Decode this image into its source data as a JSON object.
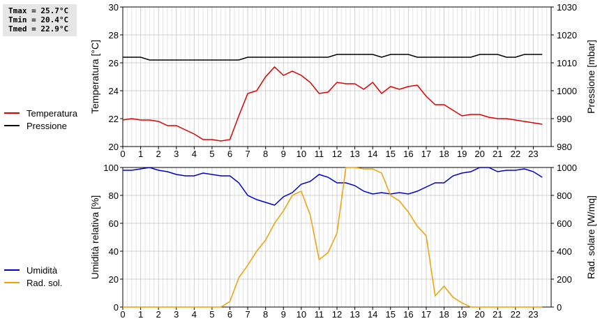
{
  "stats": {
    "tmax": "Tmax = 25.7°C",
    "tmin": "Tmin = 20.4°C",
    "tmed": "Tmed = 22.9°C"
  },
  "chart_data": [
    {
      "type": "line",
      "title": "",
      "xlabel": "",
      "ylabel": "Temperatura [°C]",
      "y2label": "Pressione [mbar]",
      "xlim": [
        0,
        24
      ],
      "ylim": [
        20,
        30
      ],
      "y2lim": [
        980,
        1030
      ],
      "grid": true,
      "legend": "left",
      "x_ticks": [
        0,
        1,
        2,
        3,
        4,
        5,
        6,
        7,
        8,
        9,
        10,
        11,
        12,
        13,
        14,
        15,
        16,
        17,
        18,
        19,
        20,
        21,
        22,
        23
      ],
      "y_ticks": [
        20,
        22,
        24,
        26,
        28,
        30
      ],
      "y2_ticks": [
        980,
        990,
        1000,
        1010,
        1020,
        1030
      ],
      "series": [
        {
          "name": "Temperatura",
          "color": "#dd0000",
          "axis": "left",
          "x": [
            0,
            0.5,
            1,
            1.5,
            2,
            2.5,
            3,
            3.5,
            4,
            4.5,
            5,
            5.5,
            6,
            6.5,
            7,
            7.5,
            8,
            8.5,
            9,
            9.5,
            10,
            10.5,
            11,
            11.5,
            12,
            12.5,
            13,
            13.5,
            14,
            14.5,
            15,
            15.5,
            16,
            16.5,
            17,
            17.5,
            18,
            18.5,
            19,
            19.5,
            20,
            20.5,
            21,
            21.5,
            22,
            22.5,
            23,
            23.5
          ],
          "values": [
            21.9,
            22.0,
            21.9,
            21.9,
            21.8,
            21.5,
            21.5,
            21.2,
            20.9,
            20.5,
            20.5,
            20.4,
            20.5,
            22.2,
            23.8,
            24.0,
            25.0,
            25.7,
            25.1,
            25.4,
            25.1,
            24.6,
            23.8,
            23.9,
            24.6,
            24.5,
            24.5,
            24.1,
            24.6,
            23.8,
            24.3,
            24.1,
            24.3,
            24.4,
            23.6,
            23.0,
            23.0,
            22.6,
            22.2,
            22.3,
            22.3,
            22.1,
            22.0,
            22.0,
            21.9,
            21.8,
            21.7,
            21.6
          ]
        },
        {
          "name": "Pressione",
          "color": "#000000",
          "axis": "right",
          "x": [
            0,
            0.5,
            1,
            1.5,
            2,
            2.5,
            3,
            3.5,
            4,
            4.5,
            5,
            5.5,
            6,
            6.5,
            7,
            7.5,
            8,
            8.5,
            9,
            9.5,
            10,
            10.5,
            11,
            11.5,
            12,
            12.5,
            13,
            13.5,
            14,
            14.5,
            15,
            15.5,
            16,
            16.5,
            17,
            17.5,
            18,
            18.5,
            19,
            19.5,
            20,
            20.5,
            21,
            21.5,
            22,
            22.5,
            23,
            23.5
          ],
          "values": [
            1012,
            1012,
            1012,
            1011,
            1011,
            1011,
            1011,
            1011,
            1011,
            1011,
            1011,
            1011,
            1011,
            1011,
            1012,
            1012,
            1012,
            1012,
            1012,
            1012,
            1012,
            1012,
            1012,
            1012,
            1013,
            1013,
            1013,
            1013,
            1013,
            1012,
            1013,
            1013,
            1013,
            1012,
            1012,
            1012,
            1012,
            1012,
            1012,
            1012,
            1013,
            1013,
            1013,
            1012,
            1012,
            1013,
            1013,
            1013
          ]
        }
      ]
    },
    {
      "type": "line",
      "title": "",
      "xlabel": "",
      "ylabel": "Umidità relativa [%]",
      "y2label": "Rad. solare [W/mq]",
      "xlim": [
        0,
        24
      ],
      "ylim": [
        0,
        100
      ],
      "y2lim": [
        0,
        1000
      ],
      "grid": true,
      "legend": "left",
      "x_ticks": [
        0,
        1,
        2,
        3,
        4,
        5,
        6,
        7,
        8,
        9,
        10,
        11,
        12,
        13,
        14,
        15,
        16,
        17,
        18,
        19,
        20,
        21,
        22,
        23
      ],
      "y_ticks": [
        0,
        20,
        40,
        60,
        80,
        100
      ],
      "y2_ticks": [
        0,
        200,
        400,
        600,
        800,
        1000
      ],
      "series": [
        {
          "name": "Umidità",
          "color": "#0000cc",
          "axis": "left",
          "x": [
            0,
            0.5,
            1,
            1.5,
            2,
            2.5,
            3,
            3.5,
            4,
            4.5,
            5,
            5.5,
            6,
            6.5,
            7,
            7.5,
            8,
            8.5,
            9,
            9.5,
            10,
            10.5,
            11,
            11.5,
            12,
            12.5,
            13,
            13.5,
            14,
            14.5,
            15,
            15.5,
            16,
            16.5,
            17,
            17.5,
            18,
            18.5,
            19,
            19.5,
            20,
            20.5,
            21,
            21.5,
            22,
            22.5,
            23,
            23.5
          ],
          "values": [
            98,
            98,
            99,
            100,
            98,
            97,
            95,
            94,
            94,
            96,
            95,
            94,
            94,
            89,
            80,
            77,
            75,
            73,
            79,
            82,
            88,
            90,
            95,
            93,
            89,
            89,
            87,
            83,
            81,
            82,
            81,
            82,
            81,
            83,
            86,
            89,
            89,
            94,
            96,
            97,
            100,
            100,
            97,
            98,
            98,
            99,
            97,
            93
          ]
        },
        {
          "name": "Rad. sol.",
          "color": "#f0a000",
          "axis": "right",
          "x": [
            0,
            0.5,
            1,
            1.5,
            2,
            2.5,
            3,
            3.5,
            4,
            4.5,
            5,
            5.5,
            6,
            6.5,
            7,
            7.5,
            8,
            8.5,
            9,
            9.5,
            10,
            10.5,
            11,
            11.5,
            12,
            12.5,
            13,
            13.5,
            14,
            14.5,
            15,
            15.5,
            16,
            16.5,
            17,
            17.5,
            18,
            18.5,
            19,
            19.5,
            20,
            20.5,
            21,
            21.5,
            22,
            22.5,
            23,
            23.5
          ],
          "values": [
            0,
            0,
            0,
            0,
            0,
            0,
            0,
            0,
            0,
            0,
            0,
            0,
            40,
            210,
            300,
            400,
            480,
            600,
            690,
            800,
            830,
            660,
            340,
            390,
            530,
            1000,
            1000,
            990,
            990,
            960,
            800,
            760,
            680,
            580,
            510,
            80,
            150,
            70,
            30,
            0,
            0,
            0,
            0,
            0,
            0,
            0,
            0,
            0
          ]
        }
      ]
    }
  ]
}
